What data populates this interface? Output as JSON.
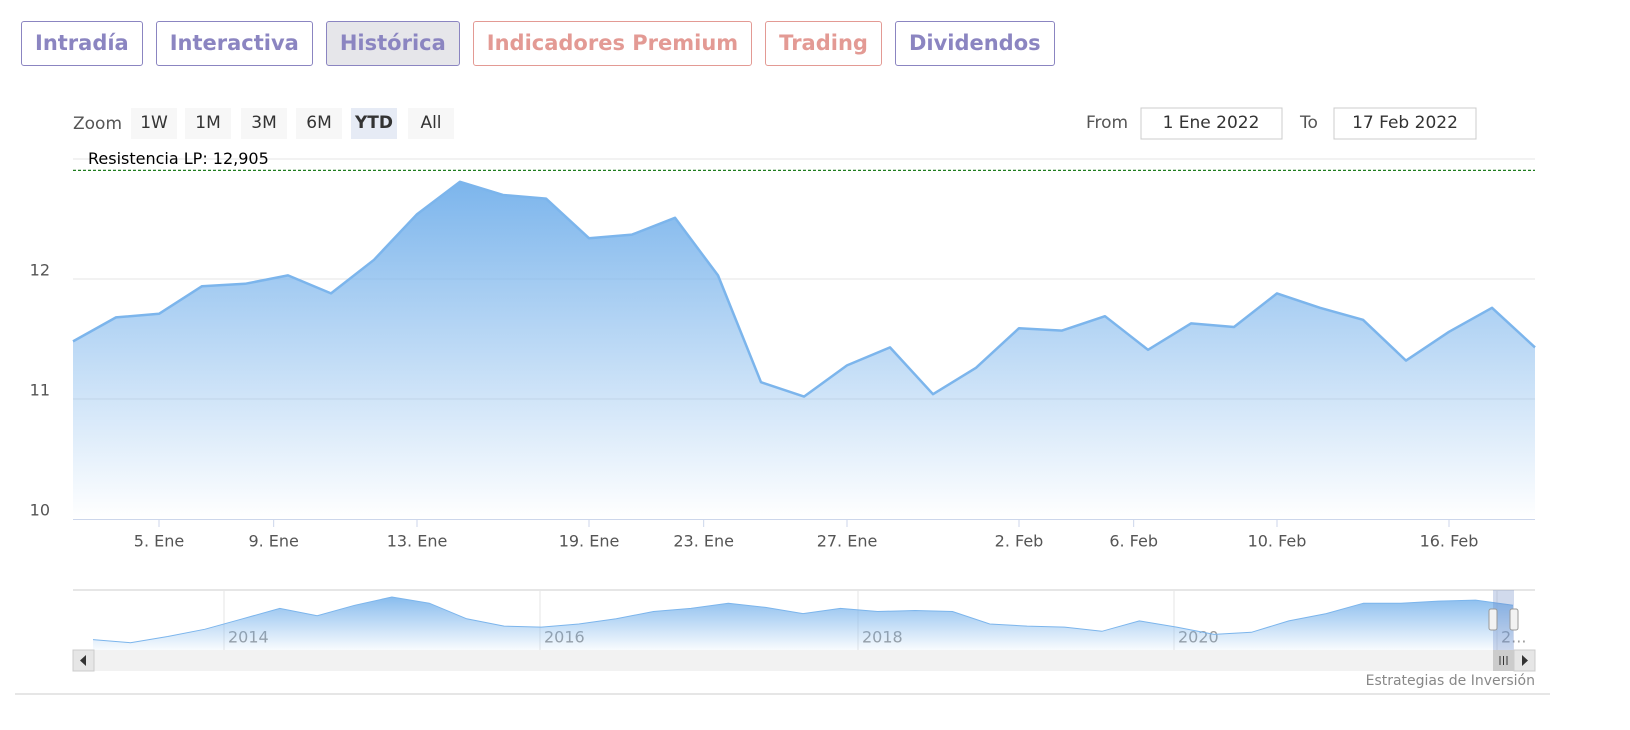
{
  "tabs": [
    "Intradía",
    "Interactiva",
    "Histórica",
    "Indicadores Premium",
    "Trading",
    "Dividendos"
  ],
  "zoom": {
    "label": "Zoom",
    "buttons": [
      "1W",
      "1M",
      "3M",
      "6M",
      "YTD",
      "All"
    ]
  },
  "range": {
    "from_label": "From",
    "from": "1 Ene 2022",
    "to_label": "To",
    "to": "17 Feb 2022"
  },
  "credits": "Estrategias de Inversión",
  "chart_data": {
    "type": "area",
    "color": "#7cb5ec",
    "x": [
      "2022-01-03",
      "2022-01-04",
      "2022-01-05",
      "2022-01-06",
      "2022-01-07",
      "2022-01-10",
      "2022-01-11",
      "2022-01-12",
      "2022-01-13",
      "2022-01-14",
      "2022-01-17",
      "2022-01-18",
      "2022-01-19",
      "2022-01-20",
      "2022-01-21",
      "2022-01-24",
      "2022-01-25",
      "2022-01-26",
      "2022-01-27",
      "2022-01-28",
      "2022-01-31",
      "2022-02-01",
      "2022-02-02",
      "2022-02-03",
      "2022-02-04",
      "2022-02-07",
      "2022-02-08",
      "2022-02-09",
      "2022-02-10",
      "2022-02-11",
      "2022-02-14",
      "2022-02-15",
      "2022-02-16",
      "2022-02-17",
      "2022-02-18"
    ],
    "values": [
      11.48,
      11.68,
      11.71,
      11.94,
      11.96,
      12.03,
      11.88,
      12.16,
      12.54,
      12.81,
      12.7,
      12.67,
      12.34,
      12.37,
      12.51,
      12.03,
      11.14,
      11.02,
      11.28,
      11.43,
      11.04,
      11.26,
      11.59,
      11.57,
      11.69,
      11.41,
      11.63,
      11.6,
      11.88,
      11.76,
      11.66,
      11.32,
      11.56,
      11.76,
      11.43
    ],
    "ylim": [
      10,
      13
    ],
    "yticks": [
      10,
      11,
      12
    ],
    "grid": true,
    "xticks": [
      {
        "value": "2022-01-05",
        "label": "5. Ene"
      },
      {
        "value": "2022-01-09",
        "label": "9. Ene"
      },
      {
        "value": "2022-01-13",
        "label": "13. Ene"
      },
      {
        "value": "2022-01-19",
        "label": "19. Ene"
      },
      {
        "value": "2022-01-23",
        "label": "23. Ene"
      },
      {
        "value": "2022-01-27",
        "label": "27. Ene"
      },
      {
        "value": "2022-02-02",
        "label": "2. Feb"
      },
      {
        "value": "2022-02-06",
        "label": "6. Feb"
      },
      {
        "value": "2022-02-10",
        "label": "10. Feb"
      },
      {
        "value": "2022-02-16",
        "label": "16. Feb"
      }
    ],
    "resistance": {
      "label": "Resistencia LP: 12,905",
      "value": 12.905,
      "color": "#1e7d1e"
    },
    "navigator": {
      "labels": [
        "2014",
        "2016",
        "2018",
        "2020",
        "2..."
      ],
      "values": [
        10,
        7,
        13,
        20,
        30,
        40,
        33,
        43,
        51,
        45,
        30,
        23,
        22,
        25,
        30,
        37,
        40,
        45,
        41,
        35,
        40,
        37,
        38,
        37,
        25,
        23,
        22,
        18,
        28,
        22,
        15,
        17,
        28,
        35,
        45,
        45,
        47,
        48,
        43
      ]
    }
  }
}
